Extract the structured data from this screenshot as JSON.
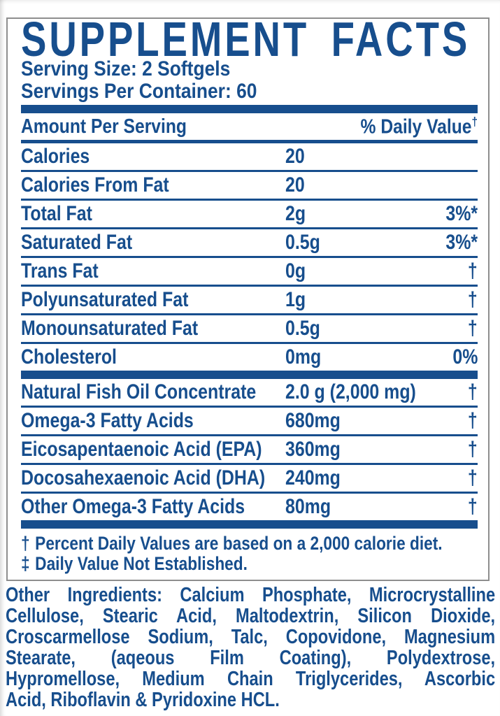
{
  "colors": {
    "text_blue": "#174e8d",
    "rule_blue": "#174e8d",
    "panel_border_gray": "#8e8e8e",
    "background": "#ffffff"
  },
  "label": {
    "title": "SUPPLEMENT FACTS",
    "serving_size": "Serving Size: 2 Softgels",
    "servings_per_container": "Servings Per Container: 60",
    "header": {
      "amount_label": "Amount Per Serving",
      "daily_value_label": "% Daily Value",
      "daily_value_superscript": "†"
    },
    "sections": [
      {
        "rows": [
          {
            "name": "Calories",
            "amount": "20",
            "dv": ""
          },
          {
            "name": "Calories From Fat",
            "amount": "20",
            "dv": ""
          },
          {
            "name": "Total Fat",
            "amount": "2g",
            "dv": "3%*"
          },
          {
            "name": "Saturated Fat",
            "amount": "0.5g",
            "dv": "3%*"
          },
          {
            "name": "Trans Fat",
            "amount": "0g",
            "dv": "†"
          },
          {
            "name": "Polyunsaturated Fat",
            "amount": "1g",
            "dv": "†"
          },
          {
            "name": "Monounsaturated Fat",
            "amount": "0.5g",
            "dv": "†"
          },
          {
            "name": "Cholesterol",
            "amount": "0mg",
            "dv": "0%"
          }
        ]
      },
      {
        "rows": [
          {
            "name": "Natural Fish Oil Concentrate",
            "amount": "2.0 g (2,000 mg)",
            "dv": "†"
          },
          {
            "name": "Omega-3 Fatty Acids",
            "amount": "680mg",
            "dv": "†"
          },
          {
            "name": "Eicosapentaenoic Acid (EPA)",
            "amount": "360mg",
            "dv": "†"
          },
          {
            "name": "Docosahexaenoic Acid (DHA)",
            "amount": "240mg",
            "dv": "†"
          },
          {
            "name": "Other Omega-3 Fatty Acids",
            "amount": "80mg",
            "dv": "†"
          }
        ]
      }
    ],
    "footnotes": [
      {
        "symbol": "†",
        "text": "Percent Daily Values are based on a 2,000 calorie diet."
      },
      {
        "symbol": "‡",
        "text": "Daily Value Not Established."
      }
    ],
    "other_ingredients_lines": [
      "Other Ingredients: Calcium Phosphate, Microcrystalline",
      "Cellulose, Stearic Acid, Maltodextrin, Silicon Dioxide,",
      "Croscarmellose Sodium, Talc, Copovidone, Magnesium",
      "Stearate, (aqeous Film Coating), Polydextrose,",
      "Hypromellose, Medium Chain Triglycerides, Ascorbic",
      "Acid, Riboflavin & Pyridoxine HCL."
    ]
  }
}
